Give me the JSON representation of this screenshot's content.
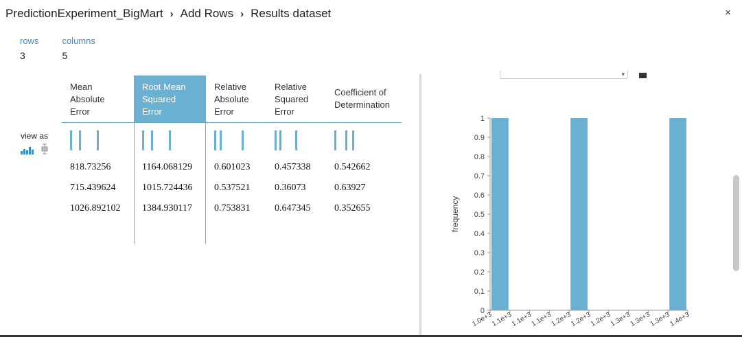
{
  "breadcrumb": {
    "items": [
      "PredictionExperiment_BigMart",
      "Add Rows",
      "Results dataset"
    ],
    "separator": "›"
  },
  "close_label": "×",
  "stats": {
    "rows_label": "rows",
    "rows_value": "3",
    "columns_label": "columns",
    "columns_value": "5"
  },
  "view_as_label": "view as",
  "table": {
    "headers": [
      [
        "Mean",
        "Absolute",
        "Error"
      ],
      [
        "Root Mean",
        "Squared",
        "Error"
      ],
      [
        "Relative",
        "Absolute",
        "Error"
      ],
      [
        "Relative",
        "Squared",
        "Error"
      ],
      [
        "Coefficient of",
        "Determination"
      ]
    ],
    "selected_column": 1,
    "rows": [
      [
        "818.73256",
        "1164.068129",
        "0.601023",
        "0.457338",
        "0.542662"
      ],
      [
        "715.439624",
        "1015.724436",
        "0.537521",
        "0.36073",
        "0.63927"
      ],
      [
        "1026.892102",
        "1384.930117",
        "0.753831",
        "0.647345",
        "0.352655"
      ]
    ]
  },
  "colors": {
    "accent": "#6ab0d2",
    "link": "#3a8fbf"
  },
  "chart_data": {
    "type": "bar",
    "ylabel": "frequency",
    "ylim": [
      0,
      1
    ],
    "y_ticks": [
      "0",
      "0.1",
      "0.2",
      "0.3",
      "0.4",
      "0.5",
      "0.6",
      "0.7",
      "0.8",
      "0.9",
      "1"
    ],
    "x_ticks": [
      "1.0e+3",
      "1.1e+3",
      "1.1e+3",
      "1.1e+3",
      "1.2e+3",
      "1.2e+3",
      "1.2e+3",
      "1.3e+3",
      "1.3e+3",
      "1.3e+3",
      "1.4e+3"
    ],
    "bins": 10,
    "values": [
      1,
      0,
      0,
      0,
      1,
      0,
      0,
      0,
      0,
      1
    ]
  }
}
